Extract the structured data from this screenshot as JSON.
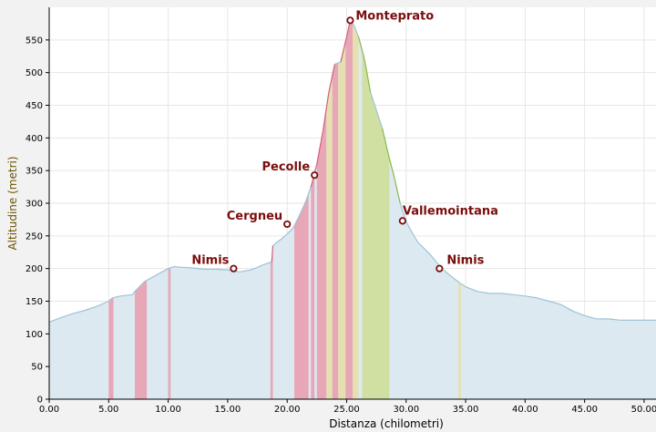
{
  "chart_data": {
    "type": "area",
    "title": "",
    "xlabel": "Distanza (chilometri)",
    "ylabel": "Altitudine (metri)",
    "xlim": [
      0,
      51
    ],
    "ylim": [
      0,
      600
    ],
    "x_ticks": [
      "0.00",
      "5.00",
      "10.00",
      "15.00",
      "20.00",
      "25.00",
      "30.00",
      "35.00",
      "40.00",
      "45.00",
      "50.00"
    ],
    "y_ticks": [
      "0",
      "50",
      "100",
      "150",
      "200",
      "250",
      "300",
      "350",
      "400",
      "450",
      "500",
      "550"
    ],
    "grid": true,
    "colors": {
      "fill": "#dce9f0",
      "line": "#9cc3d6",
      "climb": "#e7a7b7",
      "descent": "#cfe0a2",
      "flat": "#e6e0b0",
      "climb_line": "#d2607a",
      "descent_line": "#8ab84a",
      "marker": "#7a0d0d",
      "label": "#7a0d0d",
      "axis_title": "#6b5200"
    },
    "profile": [
      [
        0,
        118
      ],
      [
        1,
        125
      ],
      [
        2,
        131
      ],
      [
        3,
        136
      ],
      [
        4,
        142
      ],
      [
        5,
        150
      ],
      [
        5.3,
        155
      ],
      [
        6,
        158
      ],
      [
        7,
        160
      ],
      [
        7.2,
        165
      ],
      [
        8,
        180
      ],
      [
        9,
        190
      ],
      [
        10,
        200
      ],
      [
        10.5,
        203
      ],
      [
        11,
        202
      ],
      [
        12,
        201
      ],
      [
        13,
        199
      ],
      [
        14,
        199
      ],
      [
        15,
        198
      ],
      [
        16,
        195
      ],
      [
        17,
        198
      ],
      [
        18,
        206
      ],
      [
        18.7,
        210
      ],
      [
        18.8,
        235
      ],
      [
        19,
        238
      ],
      [
        19.5,
        245
      ],
      [
        20,
        253
      ],
      [
        20.5,
        262
      ],
      [
        21,
        280
      ],
      [
        21.5,
        300
      ],
      [
        22,
        325
      ],
      [
        22.5,
        360
      ],
      [
        23,
        410
      ],
      [
        23.5,
        470
      ],
      [
        24,
        513
      ],
      [
        24.5,
        516
      ],
      [
        25,
        555
      ],
      [
        25.3,
        580
      ],
      [
        25.6,
        573
      ],
      [
        26,
        555
      ],
      [
        26.5,
        520
      ],
      [
        27,
        470
      ],
      [
        28,
        415
      ],
      [
        28.5,
        375
      ],
      [
        29,
        340
      ],
      [
        29.5,
        300
      ],
      [
        30,
        272
      ],
      [
        30.5,
        255
      ],
      [
        31,
        240
      ],
      [
        32,
        222
      ],
      [
        33,
        200
      ],
      [
        34,
        185
      ],
      [
        34.5,
        178
      ],
      [
        35,
        172
      ],
      [
        36,
        165
      ],
      [
        37,
        162
      ],
      [
        38,
        162
      ],
      [
        39,
        160
      ],
      [
        40,
        158
      ],
      [
        41,
        155
      ],
      [
        42,
        150
      ],
      [
        43,
        145
      ],
      [
        44,
        135
      ],
      [
        45,
        128
      ],
      [
        46,
        123
      ],
      [
        47,
        123
      ],
      [
        48,
        121
      ],
      [
        49,
        121
      ],
      [
        50,
        121
      ],
      [
        51,
        121
      ]
    ],
    "segments": [
      {
        "kind": "climb",
        "from": 5.0,
        "to": 5.4
      },
      {
        "kind": "climb",
        "from": 7.2,
        "to": 8.2
      },
      {
        "kind": "climb",
        "from": 10.0,
        "to": 10.2
      },
      {
        "kind": "climb",
        "from": 18.6,
        "to": 18.8
      },
      {
        "kind": "climb",
        "from": 20.6,
        "to": 21.8
      },
      {
        "kind": "climb",
        "from": 22.0,
        "to": 22.3
      },
      {
        "kind": "climb",
        "from": 22.5,
        "to": 23.3
      },
      {
        "kind": "flat",
        "from": 23.3,
        "to": 23.8
      },
      {
        "kind": "climb",
        "from": 23.8,
        "to": 24.3
      },
      {
        "kind": "flat",
        "from": 24.3,
        "to": 24.9
      },
      {
        "kind": "climb",
        "from": 24.9,
        "to": 25.5
      },
      {
        "kind": "flat",
        "from": 25.5,
        "to": 26.0
      },
      {
        "kind": "descent",
        "from": 26.3,
        "to": 28.6
      },
      {
        "kind": "flat",
        "from": 34.4,
        "to": 34.6
      }
    ],
    "waypoints": [
      {
        "name": "Nimis",
        "x": 15.5,
        "y": 200
      },
      {
        "name": "Cergneu",
        "x": 20.0,
        "y": 268
      },
      {
        "name": "Pecolle",
        "x": 22.3,
        "y": 343
      },
      {
        "name": "Monteprato",
        "x": 25.3,
        "y": 580
      },
      {
        "name": "Vallemointana",
        "x": 29.7,
        "y": 273
      },
      {
        "name": "Nimis",
        "x": 32.8,
        "y": 200
      }
    ]
  }
}
